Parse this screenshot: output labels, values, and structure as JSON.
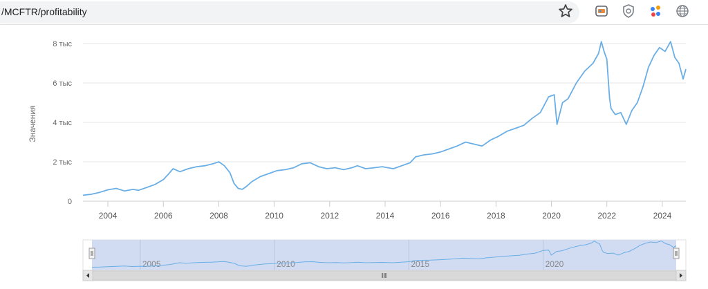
{
  "browser": {
    "url_text": "/MCFTR/profitability",
    "icons": [
      "star-icon",
      "extension-icon",
      "shield-icon",
      "dots-icon",
      "globe-icon"
    ]
  },
  "chart_data": {
    "type": "line",
    "title": "",
    "ylabel": "Значения",
    "xlabel": "",
    "ylim": [
      0,
      8000
    ],
    "xlim": [
      2003.1,
      2024.85
    ],
    "y_ticks": [
      {
        "value": 0,
        "label": "0"
      },
      {
        "value": 2000,
        "label": "2 тыс"
      },
      {
        "value": 4000,
        "label": "4 тыс"
      },
      {
        "value": 6000,
        "label": "6 тыс"
      },
      {
        "value": 8000,
        "label": "8 тыс"
      }
    ],
    "x_ticks": [
      2004,
      2006,
      2008,
      2010,
      2012,
      2014,
      2016,
      2018,
      2020,
      2022,
      2024
    ],
    "navigator_ticks": [
      2005,
      2010,
      2015,
      2020
    ],
    "grid": true,
    "legend": "none",
    "line_color": "#6aaee6",
    "series": [
      {
        "x": [
          2003.1,
          2003.4,
          2003.7,
          2004.0,
          2004.3,
          2004.6,
          2004.9,
          2005.1,
          2005.4,
          2005.7,
          2006.0,
          2006.2,
          2006.35,
          2006.6,
          2006.9,
          2007.2,
          2007.5,
          2007.8,
          2008.0,
          2008.2,
          2008.4,
          2008.55,
          2008.7,
          2008.85,
          2009.0,
          2009.2,
          2009.5,
          2009.8,
          2010.1,
          2010.4,
          2010.7,
          2011.0,
          2011.3,
          2011.6,
          2011.9,
          2012.2,
          2012.5,
          2012.8,
          2013.0,
          2013.3,
          2013.6,
          2013.9,
          2014.1,
          2014.3,
          2014.6,
          2014.9,
          2015.1,
          2015.4,
          2015.7,
          2016.0,
          2016.3,
          2016.6,
          2016.9,
          2017.2,
          2017.5,
          2017.8,
          2018.1,
          2018.4,
          2018.7,
          2019.0,
          2019.3,
          2019.6,
          2019.9,
          2020.1,
          2020.2,
          2020.4,
          2020.6,
          2020.9,
          2021.2,
          2021.5,
          2021.7,
          2021.8,
          2021.9,
          2022.0,
          2022.1,
          2022.15,
          2022.3,
          2022.5,
          2022.7,
          2022.9,
          2023.1,
          2023.3,
          2023.5,
          2023.7,
          2023.9,
          2024.1,
          2024.3,
          2024.45,
          2024.6,
          2024.75,
          2024.85
        ],
        "y": [
          300,
          350,
          450,
          580,
          650,
          520,
          600,
          550,
          700,
          850,
          1100,
          1400,
          1650,
          1500,
          1650,
          1750,
          1800,
          1900,
          2000,
          1800,
          1450,
          900,
          650,
          600,
          750,
          1000,
          1250,
          1400,
          1550,
          1600,
          1700,
          1900,
          1950,
          1750,
          1650,
          1700,
          1600,
          1700,
          1800,
          1650,
          1700,
          1750,
          1700,
          1650,
          1800,
          1950,
          2250,
          2350,
          2400,
          2500,
          2650,
          2800,
          3000,
          2900,
          2800,
          3100,
          3300,
          3550,
          3700,
          3850,
          4200,
          4500,
          5300,
          5400,
          3900,
          5000,
          5200,
          6000,
          6600,
          7000,
          7500,
          8100,
          7600,
          7200,
          5200,
          4700,
          4400,
          4500,
          3900,
          4600,
          5000,
          5800,
          6800,
          7400,
          7800,
          7600,
          8100,
          7300,
          7000,
          6200,
          6700
        ]
      }
    ]
  }
}
